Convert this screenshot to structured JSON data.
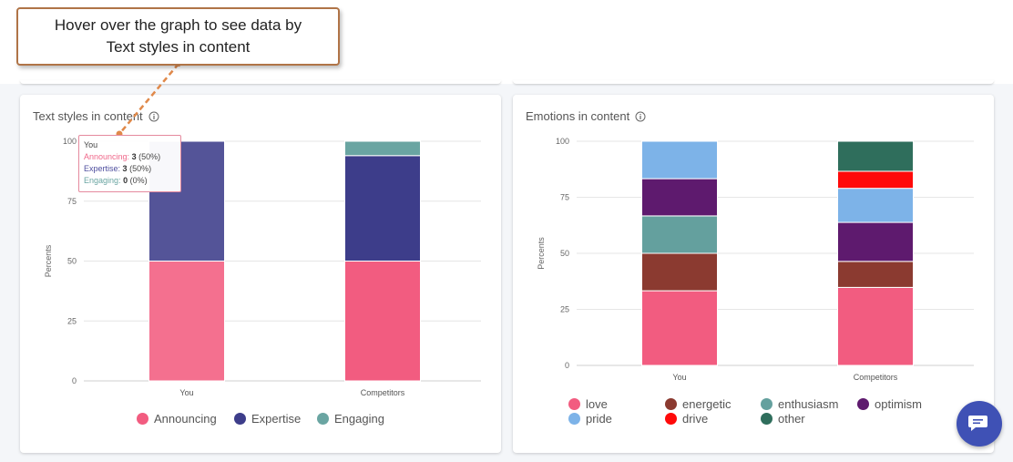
{
  "callout": {
    "line1": "Hover over the graph to see data by",
    "line2": "Text styles in content"
  },
  "left_card": {
    "title": "Text styles in content",
    "info_icon": "info-circle-icon"
  },
  "right_card": {
    "title": "Emotions in content",
    "info_icon": "info-circle-icon"
  },
  "tooltip": {
    "header": "You",
    "rows": [
      {
        "label": "Announcing:",
        "value": "3",
        "pct": "(50%)",
        "color": "#f0688a"
      },
      {
        "label": "Expertise:",
        "value": "3",
        "pct": "(50%)",
        "color": "#4e4e9e"
      },
      {
        "label": "Engaging:",
        "value": "0",
        "pct": "(0%)",
        "color": "#6aa5a2"
      }
    ]
  },
  "chat_button": {
    "icon": "chat-bubble-icon"
  },
  "chart_data": [
    {
      "type": "bar",
      "stacked": true,
      "title": "Text styles in content",
      "xlabel": "",
      "ylabel": "Percents",
      "ylim": [
        0,
        100
      ],
      "yticks": [
        "0",
        "25",
        "50",
        "75",
        "100"
      ],
      "categories": [
        "You",
        "Competitors"
      ],
      "series": [
        {
          "name": "Announcing",
          "color": "#f25c80",
          "values": [
            50,
            50
          ]
        },
        {
          "name": "Expertise",
          "color": "#3d3d8a",
          "values": [
            50,
            44
          ]
        },
        {
          "name": "Engaging",
          "color": "#6aa5a2",
          "values": [
            0,
            6
          ]
        }
      ],
      "legend_position": "bottom"
    },
    {
      "type": "bar",
      "stacked": true,
      "title": "Emotions in content",
      "xlabel": "",
      "ylabel": "Percents",
      "ylim": [
        0,
        100
      ],
      "yticks": [
        "0",
        "25",
        "50",
        "75",
        "100"
      ],
      "categories": [
        "You",
        "Competitors"
      ],
      "series": [
        {
          "name": "love",
          "color": "#f25c80",
          "values": [
            33.3,
            34.8
          ]
        },
        {
          "name": "energetic",
          "color": "#8b3a30",
          "values": [
            16.7,
            11.6
          ]
        },
        {
          "name": "enthusiasm",
          "color": "#64a09e",
          "values": [
            16.7,
            0
          ]
        },
        {
          "name": "optimism",
          "color": "#5e1a6e",
          "values": [
            16.6,
            17.4
          ]
        },
        {
          "name": "pride",
          "color": "#7db3e8",
          "values": [
            16.7,
            15.2
          ]
        },
        {
          "name": "drive",
          "color": "#ff0a0a",
          "values": [
            0,
            7.6
          ]
        },
        {
          "name": "other",
          "color": "#2f6e5c",
          "values": [
            0,
            13.4
          ]
        }
      ],
      "legend_position": "bottom"
    }
  ]
}
